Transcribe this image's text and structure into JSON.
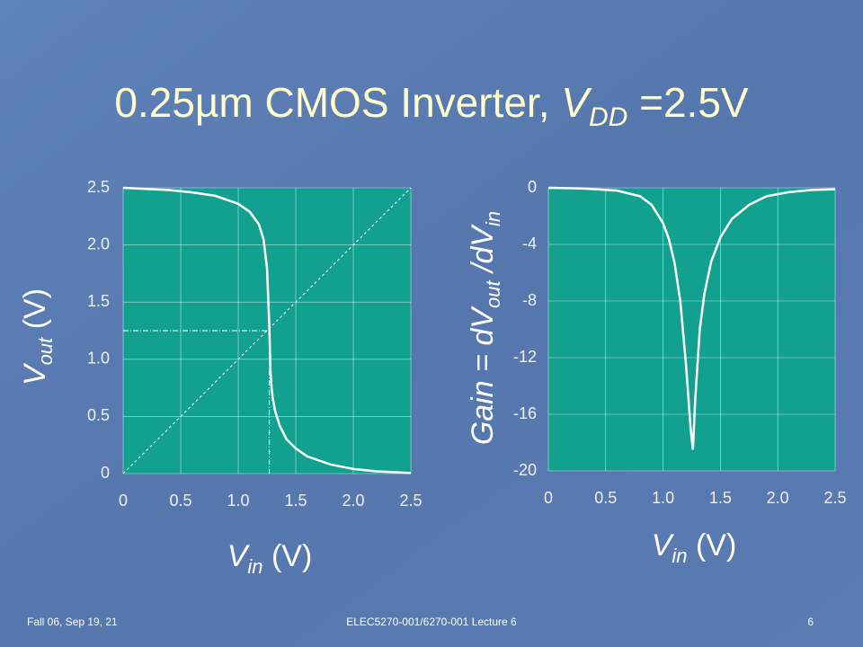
{
  "title": [
    "0.25µm CMOS Inverter, ",
    "V",
    "DD",
    " =2.5V"
  ],
  "footer": {
    "left": "Fall 06, Sep 19, 21",
    "center": "ELEC5270-001/6270-001 Lecture 6",
    "right": "6"
  },
  "chart_data": [
    {
      "type": "line",
      "x_label": [
        "V",
        "in",
        " (V)"
      ],
      "y_label": [
        "V",
        "out",
        " (V)"
      ],
      "x": [
        0,
        0.2,
        0.4,
        0.6,
        0.8,
        1.0,
        1.1,
        1.18,
        1.22,
        1.25,
        1.26,
        1.27,
        1.275,
        1.28,
        1.29,
        1.3,
        1.32,
        1.36,
        1.42,
        1.5,
        1.6,
        1.8,
        2.0,
        2.2,
        2.5
      ],
      "values": [
        2.5,
        2.49,
        2.48,
        2.46,
        2.43,
        2.36,
        2.29,
        2.18,
        2.05,
        1.8,
        1.55,
        1.3,
        1.1,
        0.9,
        0.75,
        0.66,
        0.55,
        0.42,
        0.3,
        0.22,
        0.15,
        0.08,
        0.04,
        0.02,
        0.005
      ],
      "color": "#ffffff",
      "switching_point": {
        "x": 1.27,
        "y": 1.25
      },
      "xlim": [
        0,
        2.5
      ],
      "ylim": [
        0,
        2.5
      ],
      "xticks": [
        0,
        0.5,
        {
          "value": 1,
          "label": "1.0"
        },
        1.5,
        {
          "value": 2,
          "label": "2.0"
        },
        2.5
      ],
      "yticks": [
        0,
        0.5,
        {
          "value": 1,
          "label": "1.0"
        },
        1.5,
        {
          "value": 2,
          "label": "2.0"
        },
        2.5
      ],
      "grid": true
    },
    {
      "type": "line",
      "x_label": [
        "V",
        "in",
        " (V)"
      ],
      "y_label": [
        "Gain = dV",
        "out",
        " /dV",
        "in"
      ],
      "x": [
        0,
        0.3,
        0.6,
        0.8,
        0.9,
        1.0,
        1.05,
        1.1,
        1.15,
        1.2,
        1.24,
        1.26,
        1.28,
        1.32,
        1.36,
        1.42,
        1.5,
        1.6,
        1.75,
        1.9,
        2.1,
        2.3,
        2.5
      ],
      "values": [
        0,
        -0.05,
        -0.2,
        -0.6,
        -1.2,
        -2.5,
        -3.6,
        -5.3,
        -8,
        -12.5,
        -17,
        -18.5,
        -15,
        -10,
        -7.5,
        -5.2,
        -3.5,
        -2.2,
        -1.2,
        -0.6,
        -0.3,
        -0.15,
        -0.1
      ],
      "color": "#ffffff",
      "xlim": [
        0,
        2.5
      ],
      "ylim": [
        -20,
        0
      ],
      "xticks": [
        0,
        0.5,
        {
          "value": 1,
          "label": "1.0"
        },
        1.5,
        {
          "value": 2,
          "label": "2.0"
        },
        2.5
      ],
      "yticks": [
        0,
        -4,
        -8,
        -12,
        -16,
        -20
      ],
      "grid": true
    }
  ]
}
